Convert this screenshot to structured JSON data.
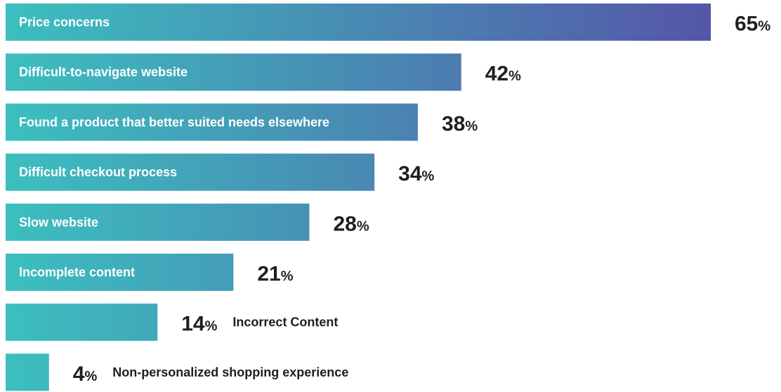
{
  "chart_data": {
    "type": "bar",
    "orientation": "horizontal",
    "categories": [
      "Price concerns",
      "Difficult-to-navigate website",
      "Found a product that better suited needs elsewhere",
      "Difficult checkout process",
      "Slow website",
      "Incomplete content",
      "Incorrect Content",
      "Non-personalized shopping experience"
    ],
    "values": [
      65,
      42,
      38,
      34,
      28,
      21,
      14,
      4
    ],
    "value_suffix": "%",
    "xlim": [
      0,
      65
    ],
    "grid": false,
    "legend": "none",
    "colors": {
      "gradient_start": "#3cbfbf",
      "gradient_end": "#5556a8",
      "label_inside": "#ffffff",
      "label_outside": "#1f1f1f",
      "value_text": "#1f1f1f"
    }
  }
}
